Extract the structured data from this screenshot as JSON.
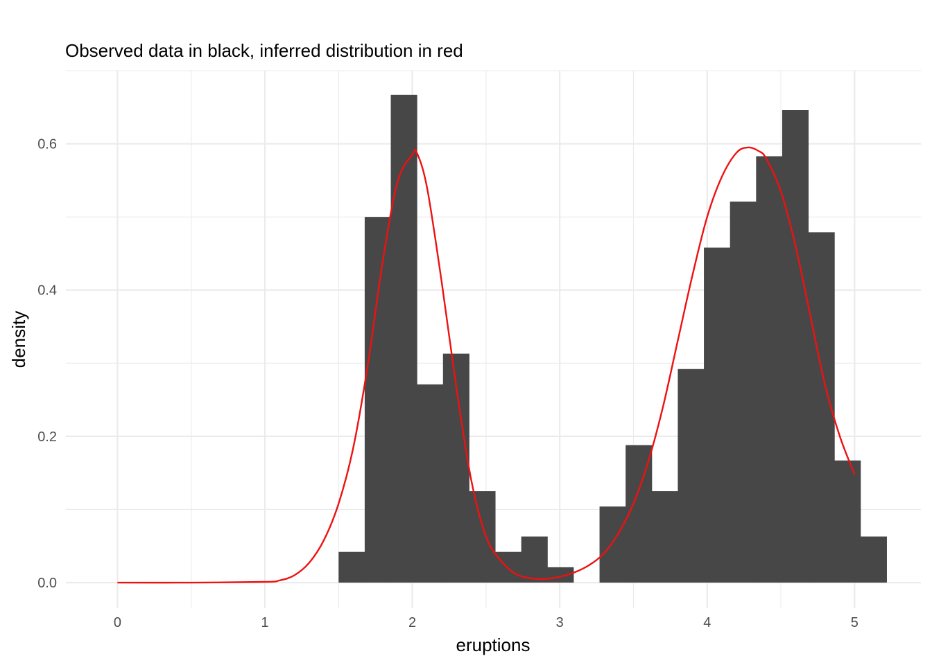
{
  "chart_data": {
    "type": "bar",
    "title": "Observed data in black, inferred distribution in red",
    "xlabel": "eruptions",
    "ylabel": "density",
    "xlim": [
      -0.35,
      5.45
    ],
    "ylim": [
      -0.035,
      0.7
    ],
    "x_ticks": [
      0,
      1,
      2,
      3,
      4,
      5
    ],
    "x_tick_labels": [
      "0",
      "1",
      "2",
      "3",
      "4",
      "5"
    ],
    "y_ticks": [
      0.0,
      0.2,
      0.4,
      0.6
    ],
    "y_tick_labels": [
      "0.0",
      "0.2",
      "0.4",
      "0.6"
    ],
    "grid": true,
    "series": [
      {
        "kind": "histogram",
        "color": "#474747",
        "bin_edges": [
          1.5,
          1.677,
          1.854,
          2.031,
          2.208,
          2.385,
          2.562,
          2.739,
          2.916,
          3.093,
          3.27,
          3.447,
          3.624,
          3.801,
          3.978,
          4.155,
          4.332,
          4.509,
          4.686,
          4.863,
          5.04,
          5.217
        ],
        "values": [
          0.042,
          0.5,
          0.667,
          0.271,
          0.313,
          0.125,
          0.042,
          0.063,
          0.021,
          0.0,
          0.104,
          0.188,
          0.125,
          0.292,
          0.458,
          0.521,
          0.583,
          0.646,
          0.479,
          0.167,
          0.063
        ]
      },
      {
        "kind": "line",
        "color": "#ee1111",
        "x": [
          0.0,
          0.5,
          1.0,
          1.1,
          1.2,
          1.3,
          1.4,
          1.5,
          1.6,
          1.7,
          1.8,
          1.9,
          2.0,
          2.03,
          2.1,
          2.2,
          2.3,
          2.4,
          2.5,
          2.6,
          2.7,
          2.8,
          2.9,
          3.0,
          3.1,
          3.2,
          3.3,
          3.4,
          3.5,
          3.6,
          3.7,
          3.8,
          3.9,
          4.0,
          4.1,
          4.2,
          4.28,
          4.35,
          4.4,
          4.5,
          4.6,
          4.7,
          4.8,
          4.9,
          5.0
        ],
        "y": [
          0.0,
          0.0,
          0.001,
          0.003,
          0.01,
          0.027,
          0.058,
          0.108,
          0.185,
          0.3,
          0.44,
          0.548,
          0.585,
          0.588,
          0.54,
          0.41,
          0.265,
          0.14,
          0.063,
          0.03,
          0.012,
          0.006,
          0.005,
          0.008,
          0.014,
          0.024,
          0.04,
          0.068,
          0.108,
          0.165,
          0.24,
          0.33,
          0.42,
          0.5,
          0.555,
          0.588,
          0.595,
          0.59,
          0.58,
          0.535,
          0.46,
          0.365,
          0.27,
          0.2,
          0.148
        ]
      }
    ]
  }
}
